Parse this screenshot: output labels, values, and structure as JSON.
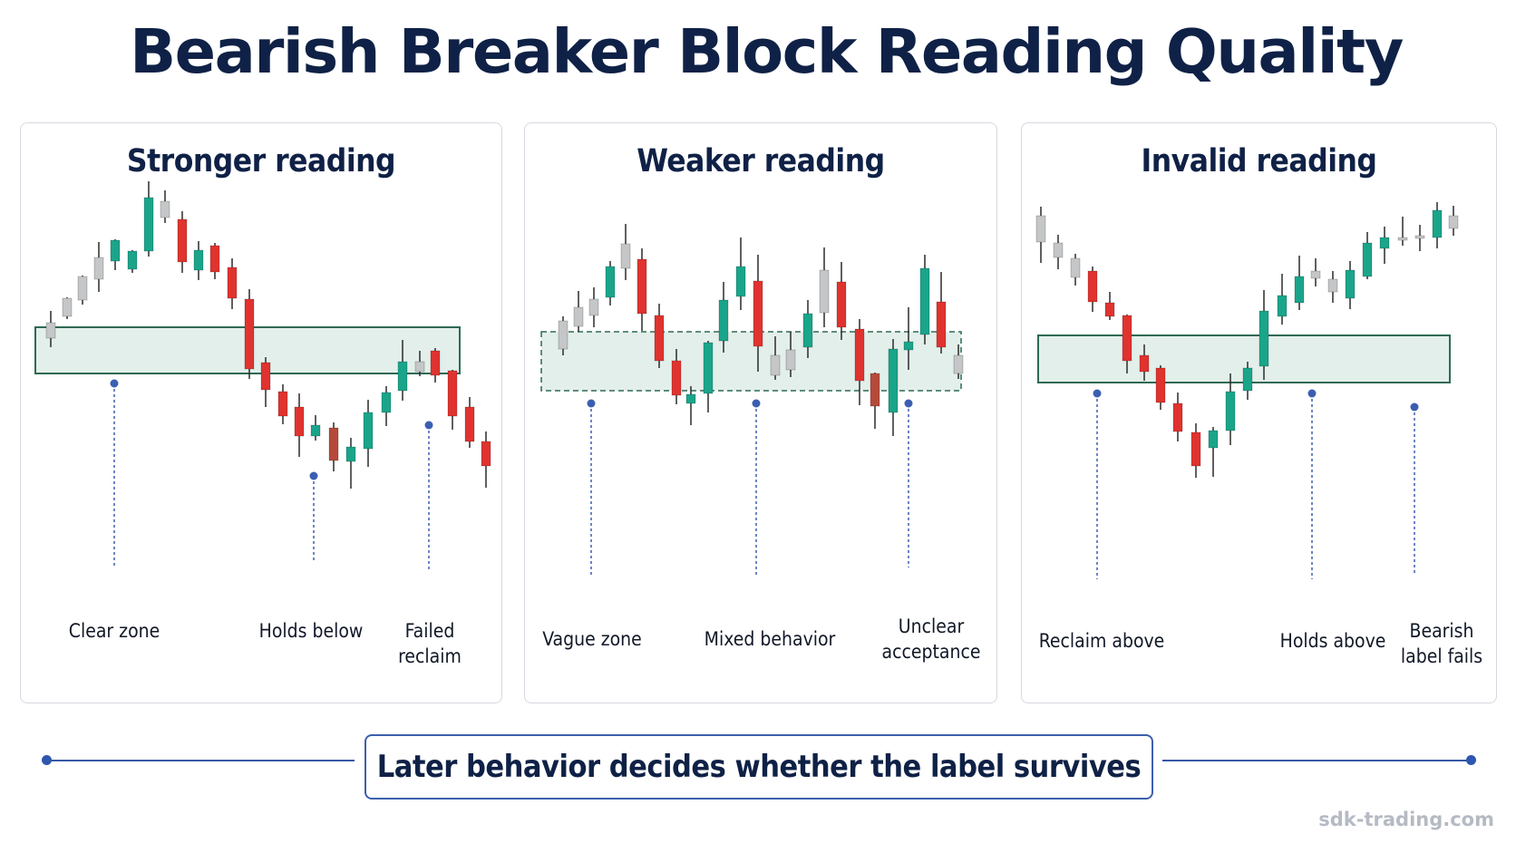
{
  "title": "Bearish Breaker Block Reading Quality",
  "panels": [
    {
      "title": "Stronger reading",
      "zone_style": "solid",
      "captions": [
        "Clear zone",
        "Holds below",
        "Failed\nreclaim"
      ]
    },
    {
      "title": "Weaker reading",
      "zone_style": "dashed",
      "captions": [
        "Vague zone",
        "Mixed behavior",
        "Unclear\nacceptance"
      ]
    },
    {
      "title": "Invalid reading",
      "zone_style": "solid",
      "captions": [
        "Reclaim above",
        "Holds above",
        "Bearish\nlabel fails"
      ]
    }
  ],
  "footer": "Later behavior decides whether the label survives",
  "watermark": "sdk-trading.com",
  "colors": {
    "bullish": "#1aa58a",
    "bearish": "#e0332f",
    "dark_bearish": "#b64a3a",
    "neutral": "#c4c6c8",
    "zone_fill": "#e3efea",
    "zone_stroke": "#2f6a53",
    "leader": "#3b5fb0",
    "text": "#0f2146"
  },
  "icons": [
    "candlestick-chart-icon",
    "zone-rectangle-icon",
    "leader-dot-icon"
  ]
}
